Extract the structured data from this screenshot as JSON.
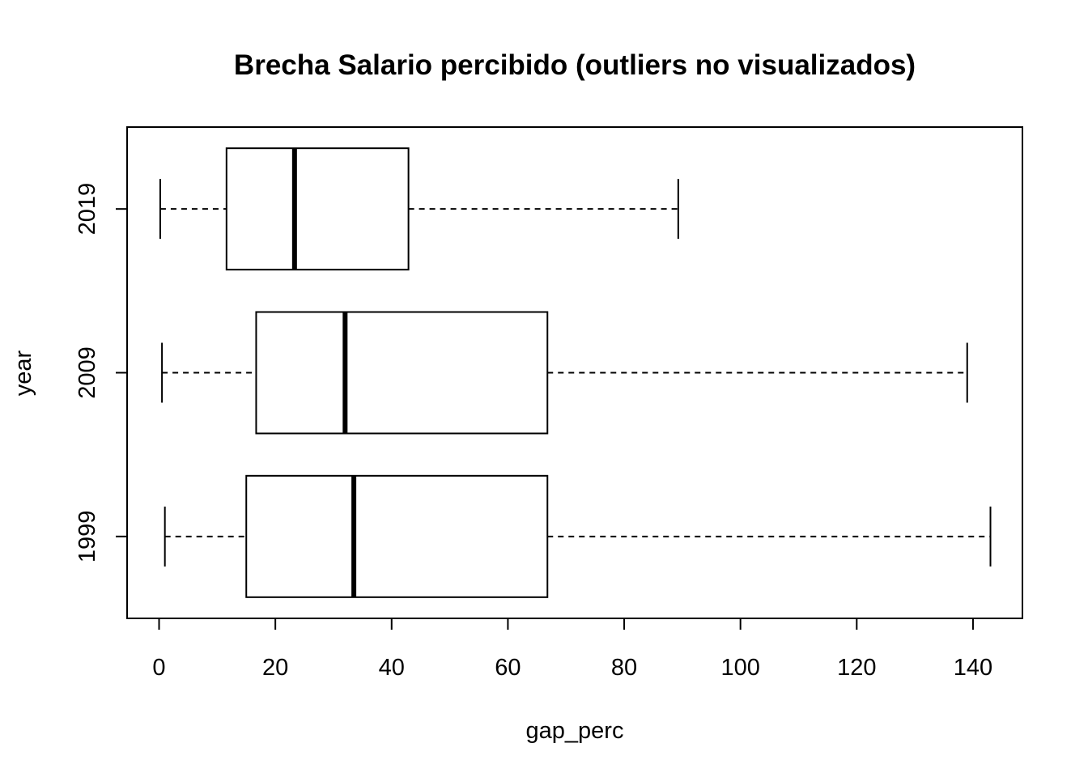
{
  "chart_data": {
    "type": "boxplot",
    "orientation": "horizontal",
    "title": "Brecha Salario percibido (outliers no visualizados)",
    "xlabel": "gap_perc",
    "ylabel": "year",
    "xlim": [
      -5.5,
      148.5
    ],
    "x_ticks": [
      0,
      20,
      40,
      60,
      80,
      100,
      120,
      140
    ],
    "grid": false,
    "legend": "none",
    "categories": [
      "1999",
      "2009",
      "2019"
    ],
    "series": [
      {
        "category": "1999",
        "whisker_low": 1.0,
        "q1": 15.0,
        "median": 33.5,
        "q3": 66.8,
        "whisker_high": 143.0
      },
      {
        "category": "2009",
        "whisker_low": 0.5,
        "q1": 16.7,
        "median": 32.0,
        "q3": 66.8,
        "whisker_high": 139.0
      },
      {
        "category": "2019",
        "whisker_low": 0.2,
        "q1": 11.6,
        "median": 23.3,
        "q3": 42.9,
        "whisker_high": 89.3
      }
    ]
  }
}
